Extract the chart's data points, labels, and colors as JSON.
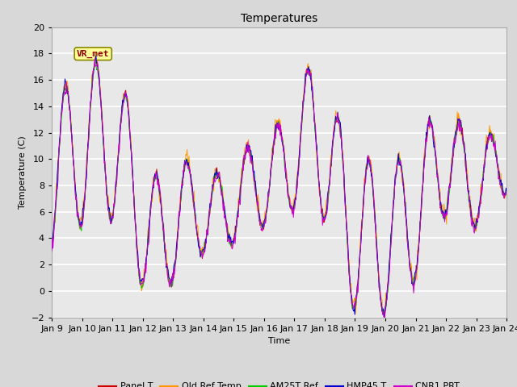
{
  "title": "Temperatures",
  "xlabel": "Time",
  "ylabel": "Temperature (C)",
  "ylim": [
    -2,
    20
  ],
  "yticks": [
    -2,
    0,
    2,
    4,
    6,
    8,
    10,
    12,
    14,
    16,
    18,
    20
  ],
  "n_points": 720,
  "series_colors": {
    "Panel T": "#cc0000",
    "Old Ref Temp": "#ff9900",
    "AM25T Ref": "#00cc00",
    "HMP45 T": "#0000cc",
    "CNR1 PRT": "#cc00cc"
  },
  "annotation_text": "VR_met",
  "bg_color": "#d8d8d8",
  "plot_bg": "#e8e8e8",
  "grid_color": "#ffffff",
  "font_size": 8,
  "title_fontsize": 10
}
